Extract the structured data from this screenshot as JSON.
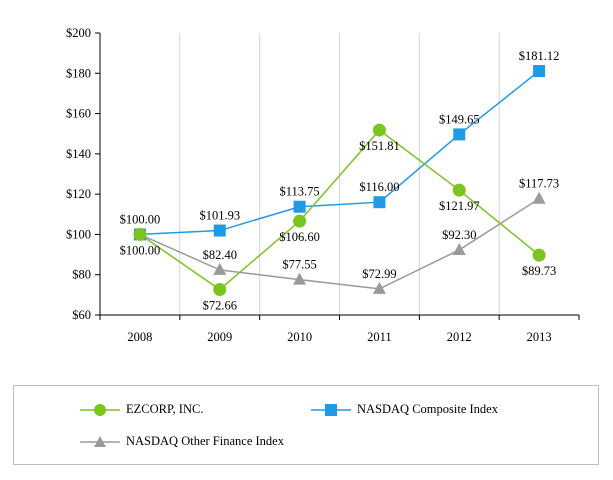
{
  "chart_data": {
    "type": "line",
    "title": "",
    "xlabel": "",
    "ylabel": "",
    "categories": [
      "2008",
      "2009",
      "2010",
      "2011",
      "2012",
      "2013"
    ],
    "ylim": [
      60,
      200
    ],
    "yticks": [
      60,
      80,
      100,
      120,
      140,
      160,
      180,
      200
    ],
    "ytick_labels": [
      "$60",
      "$80",
      "$100",
      "$120",
      "$140",
      "$160",
      "$180",
      "$200"
    ],
    "grid": "vertical",
    "legend_position": "bottom",
    "series": [
      {
        "name": "EZCORP, INC.",
        "marker": "circle",
        "color": "#7ac51f",
        "values": [
          100.0,
          72.66,
          106.6,
          151.81,
          121.97,
          89.73
        ],
        "labels": [
          "$100.00",
          "$72.66",
          "$106.60",
          "$151.81",
          "$121.97",
          "$89.73"
        ]
      },
      {
        "name": "NASDAQ Composite Index",
        "marker": "square",
        "color": "#1e9ae6",
        "values": [
          100.0,
          101.93,
          113.75,
          116.0,
          149.65,
          181.12
        ],
        "labels": [
          "$100.00",
          "$101.93",
          "$113.75",
          "$116.00",
          "$149.65",
          "$181.12"
        ]
      },
      {
        "name": "NASDAQ Other Finance Index",
        "marker": "triangle",
        "color": "#9a9a9a",
        "values": [
          100.0,
          82.4,
          77.55,
          72.99,
          92.3,
          117.73
        ],
        "labels": [
          "$100.00",
          "$82.40",
          "$77.55",
          "$72.99",
          "$92.30",
          "$117.73"
        ]
      }
    ]
  }
}
